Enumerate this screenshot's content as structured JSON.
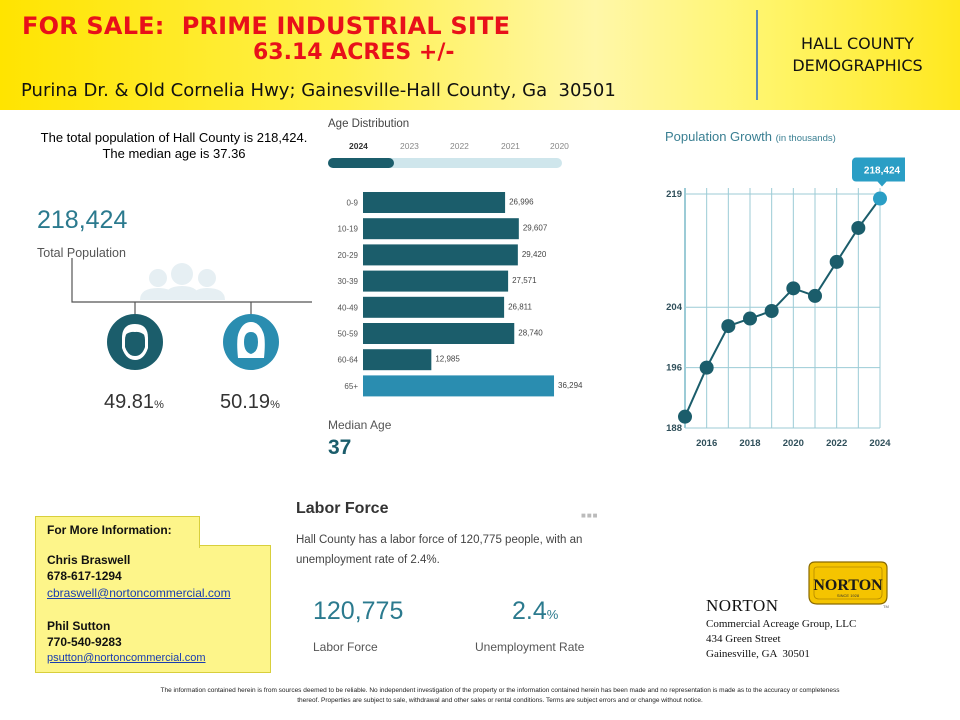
{
  "header": {
    "title_line1": "FOR SALE:  PRIME INDUSTRIAL SITE",
    "title_line2": "63.14 ACRES +/-",
    "address": "Purina Dr. & Old Cornelia Hwy; Gainesville-Hall County, Ga  30501",
    "section_line1": "HALL COUNTY",
    "section_line2": "DEMOGRAPHICS",
    "title_color": "#e8101a"
  },
  "population": {
    "intro": "The total population of Hall County is 218,424.  The median age is 37.36",
    "total": "218,424",
    "total_label": "Total Population",
    "male_pct": "49.81",
    "female_pct": "50.19",
    "pct_sign": "%",
    "icons": [
      "people-group-icon",
      "male-icon",
      "female-icon"
    ]
  },
  "age_distribution": {
    "title": "Age Distribution",
    "years": [
      "2024",
      "2023",
      "2022",
      "2021",
      "2020"
    ],
    "selected_year": "2024",
    "median_label": "Median Age",
    "median_value": "37"
  },
  "labor": {
    "title": "Labor Force",
    "text": "Hall County has a labor force of 120,775 people, with an unemployment rate of 2.4%.",
    "force_value": "120,775",
    "force_label": "Labor Force",
    "unemp_value": "2.4",
    "unemp_sign": "%",
    "unemp_label": "Unemployment Rate",
    "more_icon": "more-dots-icon"
  },
  "contact": {
    "heading": "For More Information:",
    "p1_name": "Chris Braswell",
    "p1_phone": "678-617-1294",
    "p1_email": "cbraswell@nortoncommercial.com",
    "p2_name": "Phil Sutton",
    "p2_phone": "770-540-9283",
    "p2_email": "psutton@nortoncommercial.com"
  },
  "norton": {
    "name": "NORTON",
    "line1": "Commercial Acreage Group, LLC",
    "line2": "434 Green Street",
    "line3": "Gainesville, GA  30501",
    "logo_text": "NORTON",
    "logo_sub": "SINCE 1928",
    "logo_tm": "TM"
  },
  "disclaimer": "The information contained herein is from sources deemed to be reliable.  No independent investigation of the property or the information contained herein has been made and no representation is made as to the accuracy or completeness thereof.  Properties are subject to sale, withdrawal and other sales or rental conditions.  Terms are subject errors and or change without notice.",
  "chart_data": [
    {
      "type": "bar",
      "orientation": "horizontal",
      "title": "Age Distribution",
      "categories": [
        "0-9",
        "10-19",
        "20-29",
        "30-39",
        "40-49",
        "50-59",
        "60-64",
        "65+"
      ],
      "values": [
        26996,
        29607,
        29420,
        27571,
        26811,
        28740,
        12985,
        36294
      ],
      "value_labels": [
        "26,996",
        "29,607",
        "29,420",
        "27,571",
        "26,811",
        "28,740",
        "12,985",
        "36,294"
      ],
      "highlight_category": "65+",
      "colors": {
        "bar": "#1b5d6b",
        "highlight": "#2a8db0"
      },
      "xlim": [
        0,
        38000
      ]
    },
    {
      "type": "line",
      "title": "Population Growth",
      "title_suffix": "(in thousands)",
      "x": [
        2015,
        2016,
        2017,
        2018,
        2019,
        2020,
        2021,
        2022,
        2023,
        2024
      ],
      "y": [
        189.5,
        196,
        201.5,
        202.5,
        203.5,
        206.5,
        205.5,
        210,
        214.5,
        218.4
      ],
      "x_ticks": [
        "2016",
        "2018",
        "2020",
        "2022",
        "2024"
      ],
      "x_tick_values": [
        2016,
        2018,
        2020,
        2022,
        2024
      ],
      "y_ticks": [
        "188",
        "196",
        "204",
        "219"
      ],
      "y_tick_values": [
        188,
        196,
        204,
        219
      ],
      "xlim": [
        2015,
        2024
      ],
      "ylim": [
        188,
        219
      ],
      "callout": "218,424",
      "grid": true,
      "colors": {
        "line": "#1b5d6b",
        "point": "#1b5d6b",
        "last_point": "#2a9ec5",
        "axis": "#9ccbd6",
        "callout": "#2a9ec5"
      }
    }
  ]
}
